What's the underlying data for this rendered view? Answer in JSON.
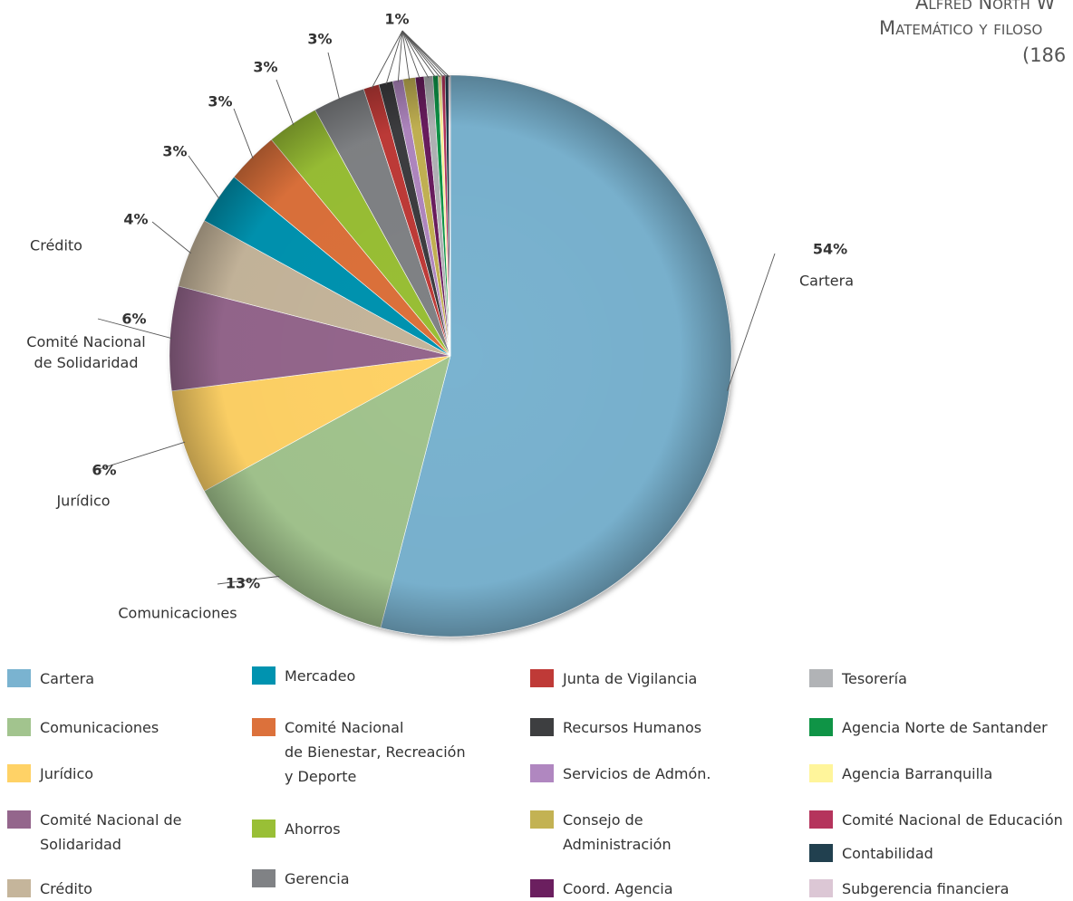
{
  "chart_data": {
    "type": "pie",
    "attribution": [
      "Alfred North W",
      "Matemático y filoso",
      "(186"
    ],
    "categories": [
      "Cartera",
      "Comunicaciones",
      "Jurídico",
      "Comité Nacional de\nSolidaridad",
      "Crédito",
      "Mercadeo",
      "Comité Nacional\nde Bienestar, Recreación\ny Deporte",
      "Ahorros",
      "Gerencia",
      "Junta de Vigilancia",
      "Recursos Humanos",
      "Servicios de Admón.",
      "Consejo de\nAdministración",
      "Coord. Agencia",
      "Tesorería",
      "Agencia Norte de Santander",
      "Agencia Barranquilla",
      "Comité Nacional de Educación",
      "Contabilidad",
      "Subgerencia financiera"
    ],
    "values": [
      54,
      13,
      6,
      6,
      4,
      3,
      3,
      3,
      3,
      0.9,
      0.8,
      0.6,
      0.7,
      0.5,
      0.5,
      0.3,
      0.2,
      0.2,
      0.2,
      0.1
    ],
    "value_labels": [
      "54%",
      "13%",
      "6%",
      "6%",
      "4%",
      "3%",
      "3%",
      "3%",
      "3%",
      null,
      null,
      null,
      null,
      null,
      null,
      null,
      null,
      null,
      null,
      null
    ],
    "grouped_label": "1%",
    "colors": [
      "#7ab3d0",
      "#a2c48e",
      "#ffd266",
      "#94668c",
      "#c5b59b",
      "#0093b0",
      "#dc713b",
      "#99bf36",
      "#808285",
      "#bf3a37",
      "#3d3e40",
      "#b087c0",
      "#c3b253",
      "#6b1f5f",
      "#b1b3b6",
      "#0f9446",
      "#fff59b",
      "#b5345c",
      "#21404f",
      "#dcc7d5"
    ]
  }
}
